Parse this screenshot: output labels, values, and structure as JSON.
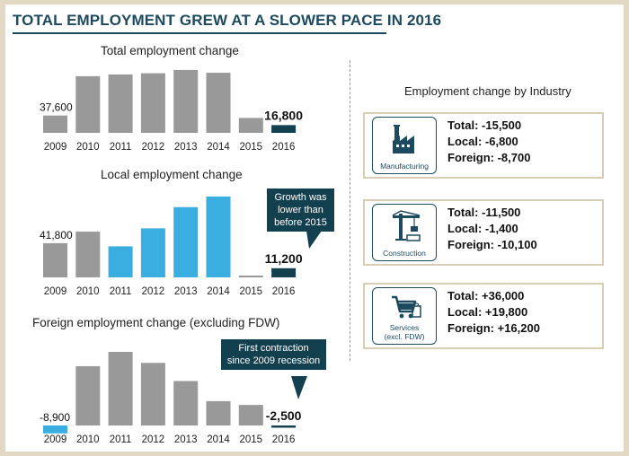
{
  "title": "TOTAL EMPLOYMENT GREW AT A SLOWER PACE IN 2016",
  "colors": {
    "bar_grey": "#999999",
    "bar_highlight": "#3aaee0",
    "bar_latest": "#13404f",
    "accent_navy": "#1e4a5f"
  },
  "chart_data": [
    {
      "type": "bar",
      "title": "Total employment change",
      "categories": [
        "2009",
        "2010",
        "2011",
        "2012",
        "2013",
        "2014",
        "2015",
        "2016"
      ],
      "values": [
        37600,
        122700,
        126400,
        129100,
        136200,
        130100,
        32300,
        16800
      ],
      "bar_styles": [
        "grey",
        "grey",
        "grey",
        "grey",
        "grey",
        "grey",
        "grey",
        "latest"
      ],
      "data_labels": [
        {
          "index": 0,
          "text": "37,600"
        },
        {
          "index": 7,
          "text": "16,800",
          "bold": true
        }
      ],
      "ylim": [
        0,
        140000
      ]
    },
    {
      "type": "bar",
      "title": "Local employment change",
      "categories": [
        "2009",
        "2010",
        "2011",
        "2012",
        "2013",
        "2014",
        "2015",
        "2016"
      ],
      "values": [
        41800,
        56000,
        38000,
        60000,
        86000,
        99000,
        1000,
        11200
      ],
      "bar_styles": [
        "grey",
        "grey",
        "highlight",
        "highlight",
        "highlight",
        "highlight",
        "grey",
        "latest"
      ],
      "data_labels": [
        {
          "index": 0,
          "text": "41,800"
        },
        {
          "index": 7,
          "text": "11,200",
          "bold": true
        }
      ],
      "ylim": [
        0,
        100000
      ],
      "callout": "Growth was lower than before 2015"
    },
    {
      "type": "bar",
      "title": "Foreign employment change (excluding FDW)",
      "categories": [
        "2009",
        "2010",
        "2011",
        "2012",
        "2013",
        "2014",
        "2015",
        "2016"
      ],
      "values": [
        -8900,
        66700,
        82800,
        70400,
        50000,
        27400,
        23100,
        -2500
      ],
      "bar_styles": [
        "highlight",
        "grey",
        "grey",
        "grey",
        "grey",
        "grey",
        "grey",
        "latest"
      ],
      "data_labels": [
        {
          "index": 0,
          "text": "-8,900"
        },
        {
          "index": 7,
          "text": "-2,500",
          "bold": true
        }
      ],
      "ylim": [
        -10000,
        85000
      ],
      "callout": "First contraction since 2009 recession"
    }
  ],
  "industry": {
    "title": "Employment change by Industry",
    "items": [
      {
        "name": "Manufacturing",
        "icon": "factory-icon",
        "total": "Total:  -15,500",
        "local": "Local:  -6,800",
        "foreign": "Foreign:  -8,700"
      },
      {
        "name": "Construction",
        "icon": "crane-icon",
        "total": "Total:  -11,500",
        "local": "Local:  -1,400",
        "foreign": "Foreign:  -10,100"
      },
      {
        "name": "Services\n(excl. FDW)",
        "icon": "shopping-cart-icon",
        "total": "Total:  +36,000",
        "local": "Local:  +19,800",
        "foreign": "Foreign:  +16,200"
      }
    ]
  }
}
